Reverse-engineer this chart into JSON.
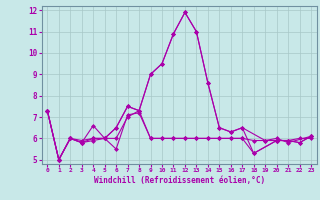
{
  "color": "#aa00aa",
  "background": "#c8e8e8",
  "grid_color": "#a8c8c8",
  "xlabel": "Windchill (Refroidissement éolien,°C)",
  "ylim": [
    5,
    12
  ],
  "xlim": [
    -0.5,
    23.5
  ],
  "yticks": [
    5,
    6,
    7,
    8,
    9,
    10,
    11,
    12
  ],
  "xticks": [
    0,
    1,
    2,
    3,
    4,
    5,
    6,
    7,
    8,
    9,
    10,
    11,
    12,
    13,
    14,
    15,
    16,
    17,
    18,
    19,
    20,
    21,
    22,
    23
  ],
  "markersize": 2.5,
  "linewidth": 0.8,
  "series1_x": [
    0,
    1,
    2,
    3,
    4,
    5,
    6,
    7,
    8,
    9,
    10,
    11,
    12,
    13,
    14,
    15,
    16,
    17,
    19,
    20,
    21,
    23
  ],
  "series1_y": [
    7.3,
    5.0,
    6.0,
    5.8,
    6.6,
    6.0,
    6.5,
    7.5,
    7.3,
    9.0,
    9.5,
    10.9,
    11.9,
    11.0,
    8.6,
    6.5,
    6.3,
    6.5,
    5.9,
    6.0,
    5.8,
    6.1
  ],
  "series2_x": [
    0,
    1,
    2,
    3,
    4,
    5,
    6,
    7,
    8,
    9,
    10,
    11,
    12,
    13,
    14,
    15,
    16,
    17,
    18,
    19,
    20,
    21,
    22,
    23
  ],
  "series2_y": [
    7.3,
    5.0,
    6.0,
    5.8,
    5.9,
    6.0,
    5.5,
    7.1,
    7.2,
    6.0,
    6.0,
    6.0,
    6.0,
    6.0,
    6.0,
    6.0,
    6.0,
    6.0,
    5.9,
    5.9,
    5.9,
    5.9,
    6.0,
    6.0
  ],
  "series3_x": [
    0,
    1,
    2,
    3,
    4,
    5,
    6,
    7,
    8,
    9,
    10,
    11,
    12,
    13,
    14,
    15,
    16,
    17,
    18,
    20,
    21,
    22,
    23
  ],
  "series3_y": [
    7.3,
    5.0,
    6.0,
    5.8,
    6.0,
    6.0,
    6.5,
    7.5,
    7.3,
    9.0,
    9.5,
    10.9,
    11.9,
    11.0,
    8.6,
    6.5,
    6.3,
    6.5,
    5.3,
    5.9,
    5.9,
    5.8,
    6.1
  ],
  "series4_x": [
    0,
    1,
    2,
    3,
    4,
    5,
    6,
    7,
    8,
    9,
    10,
    11,
    12,
    13,
    14,
    15,
    16,
    17,
    18,
    20,
    21,
    22,
    23
  ],
  "series4_y": [
    7.3,
    5.0,
    6.0,
    5.9,
    6.0,
    6.0,
    6.0,
    7.0,
    7.3,
    6.0,
    6.0,
    6.0,
    6.0,
    6.0,
    6.0,
    6.0,
    6.0,
    6.0,
    5.3,
    5.9,
    5.9,
    5.8,
    6.1
  ]
}
